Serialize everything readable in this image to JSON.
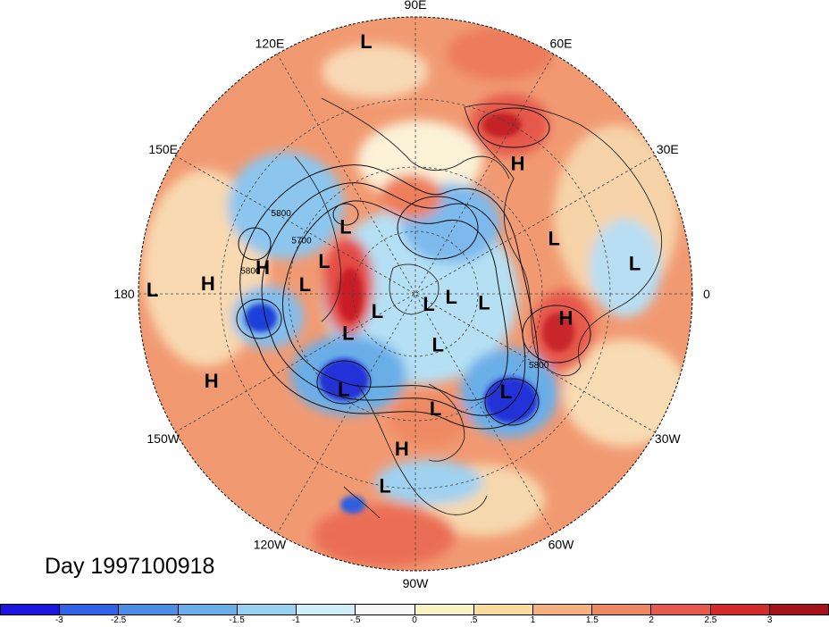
{
  "title": "Day 1997100918",
  "longitude_labels": [
    {
      "id": "90E",
      "text": "90E",
      "angle": 90
    },
    {
      "id": "60E",
      "text": "60E",
      "angle": 60
    },
    {
      "id": "30E",
      "text": "30E",
      "angle": 30
    },
    {
      "id": "0",
      "text": "0",
      "angle": 0
    },
    {
      "id": "30W",
      "text": "30W",
      "angle": -30
    },
    {
      "id": "60W",
      "text": "60W",
      "angle": -60
    },
    {
      "id": "90W",
      "text": "90W",
      "angle": -90
    },
    {
      "id": "120W",
      "text": "120W",
      "angle": -120
    },
    {
      "id": "150W",
      "text": "150W",
      "angle": -150
    },
    {
      "id": "180",
      "text": "180",
      "angle": 180
    },
    {
      "id": "150E",
      "text": "150E",
      "angle": 150
    },
    {
      "id": "120E",
      "text": "120E",
      "angle": 120
    }
  ],
  "pressure_centers": [
    {
      "type": "L",
      "lon": 101,
      "lat_frac": 0.93
    },
    {
      "type": "H",
      "lon": 52,
      "lat_frac": 0.6
    },
    {
      "type": "L",
      "lon": 8,
      "lat_frac": 0.8
    },
    {
      "type": "L",
      "lon": 22,
      "lat_frac": 0.54
    },
    {
      "type": "H",
      "lon": -9,
      "lat_frac": 0.55
    },
    {
      "type": "L",
      "lon": -47,
      "lat_frac": 0.48
    },
    {
      "type": "L",
      "lon": -99,
      "lat_frac": 0.7
    },
    {
      "type": "H",
      "lon": -95,
      "lat_frac": 0.56
    },
    {
      "type": "L",
      "lon": -127,
      "lat_frac": 0.43
    },
    {
      "type": "L",
      "lon": -66,
      "lat_frac": 0.2
    },
    {
      "type": "L",
      "lon": -80,
      "lat_frac": 0.42
    },
    {
      "type": "L",
      "lon": -156,
      "lat_frac": 0.15
    },
    {
      "type": "L",
      "lon": -150,
      "lat_frac": 0.28
    },
    {
      "type": "L",
      "lon": -36,
      "lat_frac": 0.06
    },
    {
      "type": "L",
      "lon": -7,
      "lat_frac": 0.25
    },
    {
      "type": "L",
      "lon": -4,
      "lat_frac": 0.13
    },
    {
      "type": "L",
      "lon": 160,
      "lat_frac": 0.35
    },
    {
      "type": "L",
      "lon": 175,
      "lat_frac": 0.4
    },
    {
      "type": "L",
      "lon": 136,
      "lat_frac": 0.35
    },
    {
      "type": "H",
      "lon": 170,
      "lat_frac": 0.56
    },
    {
      "type": "H",
      "lon": 177,
      "lat_frac": 0.75
    },
    {
      "type": "L",
      "lon": 179,
      "lat_frac": 0.95
    },
    {
      "type": "H",
      "lon": -157,
      "lat_frac": 0.8
    }
  ],
  "contour_labels": [
    {
      "text": "5800",
      "lon": 150,
      "lat_frac": 0.56
    },
    {
      "text": "5700",
      "lon": 156,
      "lat_frac": 0.45
    },
    {
      "text": "5800",
      "lon": 173,
      "lat_frac": 0.6
    },
    {
      "text": "5800",
      "lon": -31,
      "lat_frac": 0.52
    }
  ],
  "colorbar": {
    "colors": [
      "#1a16e0",
      "#2f62e6",
      "#4b8ee6",
      "#6aaee8",
      "#97d2f0",
      "#cfeef7",
      "#f6f6f6",
      "#fbf2c4",
      "#f9dc9b",
      "#f6b27e",
      "#ee8860",
      "#e6594b",
      "#d42a2c",
      "#a5121c"
    ],
    "ticks": [
      "-3",
      "-2.5",
      "-2",
      "-1.5",
      "-1",
      "-.5",
      "0",
      ".5",
      "1",
      "1.5",
      "2",
      "2.5",
      "3"
    ]
  },
  "colors": {
    "warm_bg": "#f3a277",
    "cool": "#5aa6e8",
    "deep_cool": "#1f3fd8",
    "deep_warm": "#d02c2a",
    "ocean_pale": "#f9dfc3"
  }
}
